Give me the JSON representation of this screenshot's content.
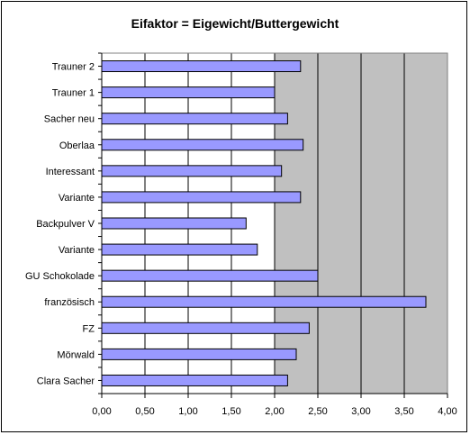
{
  "chart_data": {
    "type": "bar",
    "orientation": "horizontal",
    "title": "Eifaktor = Eigewicht/Buttergewicht",
    "categories": [
      "Trauner 2",
      "Trauner 1",
      "Sacher neu",
      "Oberlaa",
      "Interessant",
      "Variante",
      "Backpulver V",
      "Variante",
      "GU Schokolade",
      "französisch",
      "FZ",
      "Mörwald",
      "Clara Sacher"
    ],
    "values": [
      2.3,
      2.0,
      2.15,
      2.33,
      2.08,
      2.3,
      1.67,
      1.8,
      2.5,
      3.75,
      2.4,
      2.25,
      2.15
    ],
    "xlim": [
      0,
      4.0
    ],
    "xticks": [
      "0,00",
      "0,50",
      "1,00",
      "1,50",
      "2,00",
      "2,50",
      "3,00",
      "3,50",
      "4,00"
    ],
    "xtick_values": [
      0,
      0.5,
      1.0,
      1.5,
      2.0,
      2.5,
      3.0,
      3.5,
      4.0
    ],
    "shaded_from": 2.0,
    "grid": true,
    "legend": "none",
    "colors": {
      "bar_fill": "#9999ff",
      "bar_stroke": "#000000",
      "plot_bg": "#ffffff",
      "shade_bg": "#c0c0c0",
      "grid": "#000000"
    }
  }
}
